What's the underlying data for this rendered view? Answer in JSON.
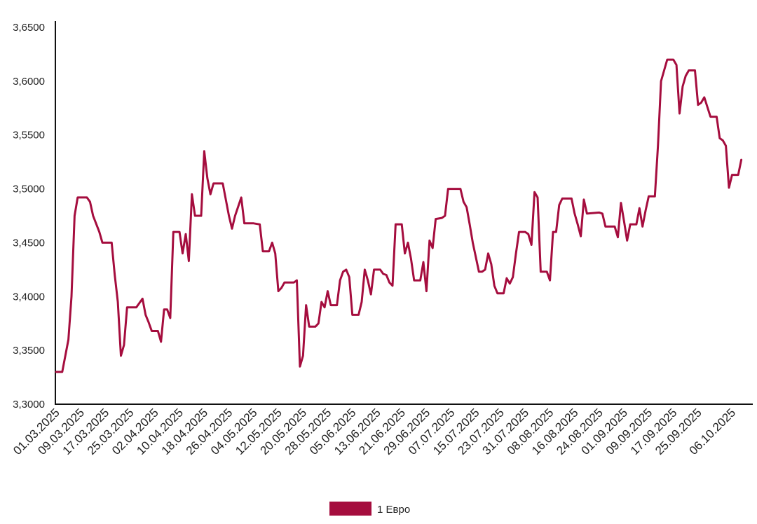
{
  "chart_data": {
    "type": "line",
    "title": "",
    "xlabel": "",
    "ylabel": "",
    "ylim": [
      3.3,
      3.65
    ],
    "y_ticks": [
      "3,3000",
      "3,3500",
      "3,4000",
      "3,4500",
      "3,5000",
      "3,5500",
      "3,6000",
      "3,6500"
    ],
    "y_tick_values": [
      3.3,
      3.35,
      3.4,
      3.45,
      3.5,
      3.55,
      3.6,
      3.65
    ],
    "x_tick_labels": [
      "01.03.2025",
      "09.03.2025",
      "17.03.2025",
      "25.03.2025",
      "02.04.2025",
      "10.04.2025",
      "18.04.2025",
      "26.04.2025",
      "04.05.2025",
      "12.05.2025",
      "20.05.2025",
      "28.05.2025",
      "05.06.2025",
      "13.06.2025",
      "21.06.2025",
      "29.06.2025",
      "07.07.2025",
      "15.07.2025",
      "23.07.2025",
      "31.07.2025",
      "08.08.2025",
      "16.08.2025",
      "24.08.2025",
      "01.09.2025",
      "09.09.2025",
      "17.09.2025",
      "25.09.2025",
      "06.10.2025"
    ],
    "x_range": [
      "01.03.2025",
      "10.10.2025"
    ],
    "grid": false,
    "legend_position": "bottom-center",
    "series": [
      {
        "name": "1 Евро",
        "color": "#A50D3E",
        "points": [
          [
            "01.03.2025",
            3.33
          ],
          [
            "03.03.2025",
            3.33
          ],
          [
            "05.03.2025",
            3.36
          ],
          [
            "06.03.2025",
            3.4
          ],
          [
            "07.03.2025",
            3.475
          ],
          [
            "08.03.2025",
            3.492
          ],
          [
            "11.03.2025",
            3.492
          ],
          [
            "12.03.2025",
            3.488
          ],
          [
            "13.03.2025",
            3.475
          ],
          [
            "15.03.2025",
            3.46
          ],
          [
            "16.03.2025",
            3.45
          ],
          [
            "19.03.2025",
            3.45
          ],
          [
            "20.03.2025",
            3.42
          ],
          [
            "21.03.2025",
            3.395
          ],
          [
            "22.03.2025",
            3.345
          ],
          [
            "23.03.2025",
            3.355
          ],
          [
            "24.03.2025",
            3.39
          ],
          [
            "27.03.2025",
            3.39
          ],
          [
            "29.03.2025",
            3.398
          ],
          [
            "30.03.2025",
            3.383
          ],
          [
            "31.03.2025",
            3.376
          ],
          [
            "01.04.2025",
            3.368
          ],
          [
            "03.04.2025",
            3.368
          ],
          [
            "04.04.2025",
            3.358
          ],
          [
            "05.04.2025",
            3.388
          ],
          [
            "06.04.2025",
            3.388
          ],
          [
            "07.04.2025",
            3.38
          ],
          [
            "08.04.2025",
            3.46
          ],
          [
            "10.04.2025",
            3.46
          ],
          [
            "11.04.2025",
            3.44
          ],
          [
            "12.04.2025",
            3.458
          ],
          [
            "13.04.2025",
            3.433
          ],
          [
            "14.04.2025",
            3.495
          ],
          [
            "15.04.2025",
            3.475
          ],
          [
            "17.04.2025",
            3.475
          ],
          [
            "18.04.2025",
            3.535
          ],
          [
            "19.04.2025",
            3.51
          ],
          [
            "20.04.2025",
            3.495
          ],
          [
            "21.04.2025",
            3.505
          ],
          [
            "24.04.2025",
            3.505
          ],
          [
            "26.04.2025",
            3.475
          ],
          [
            "27.04.2025",
            3.463
          ],
          [
            "28.04.2025",
            3.475
          ],
          [
            "30.04.2025",
            3.492
          ],
          [
            "01.05.2025",
            3.468
          ],
          [
            "04.05.2025",
            3.468
          ],
          [
            "06.05.2025",
            3.467
          ],
          [
            "07.05.2025",
            3.442
          ],
          [
            "09.05.2025",
            3.442
          ],
          [
            "10.05.2025",
            3.45
          ],
          [
            "11.05.2025",
            3.44
          ],
          [
            "12.05.2025",
            3.405
          ],
          [
            "13.05.2025",
            3.408
          ],
          [
            "14.05.2025",
            3.413
          ],
          [
            "17.05.2025",
            3.413
          ],
          [
            "18.05.2025",
            3.415
          ],
          [
            "19.05.2025",
            3.335
          ],
          [
            "20.05.2025",
            3.345
          ],
          [
            "21.05.2025",
            3.392
          ],
          [
            "22.05.2025",
            3.372
          ],
          [
            "24.05.2025",
            3.372
          ],
          [
            "25.05.2025",
            3.375
          ],
          [
            "26.05.2025",
            3.395
          ],
          [
            "27.05.2025",
            3.39
          ],
          [
            "28.05.2025",
            3.405
          ],
          [
            "29.05.2025",
            3.392
          ],
          [
            "31.05.2025",
            3.392
          ],
          [
            "01.06.2025",
            3.415
          ],
          [
            "02.06.2025",
            3.423
          ],
          [
            "03.06.2025",
            3.425
          ],
          [
            "04.06.2025",
            3.418
          ],
          [
            "05.06.2025",
            3.383
          ],
          [
            "07.06.2025",
            3.383
          ],
          [
            "08.06.2025",
            3.395
          ],
          [
            "09.06.2025",
            3.425
          ],
          [
            "10.06.2025",
            3.415
          ],
          [
            "11.06.2025",
            3.402
          ],
          [
            "12.06.2025",
            3.425
          ],
          [
            "14.06.2025",
            3.425
          ],
          [
            "15.06.2025",
            3.421
          ],
          [
            "16.06.2025",
            3.42
          ],
          [
            "17.06.2025",
            3.413
          ],
          [
            "18.06.2025",
            3.41
          ],
          [
            "19.06.2025",
            3.467
          ],
          [
            "21.06.2025",
            3.467
          ],
          [
            "22.06.2025",
            3.44
          ],
          [
            "23.06.2025",
            3.45
          ],
          [
            "24.06.2025",
            3.435
          ],
          [
            "25.06.2025",
            3.415
          ],
          [
            "27.06.2025",
            3.415
          ],
          [
            "28.06.2025",
            3.432
          ],
          [
            "29.06.2025",
            3.405
          ],
          [
            "30.06.2025",
            3.452
          ],
          [
            "01.07.2025",
            3.445
          ],
          [
            "02.07.2025",
            3.472
          ],
          [
            "04.07.2025",
            3.473
          ],
          [
            "05.07.2025",
            3.475
          ],
          [
            "06.07.2025",
            3.5
          ],
          [
            "10.07.2025",
            3.5
          ],
          [
            "11.07.2025",
            3.488
          ],
          [
            "12.07.2025",
            3.483
          ],
          [
            "13.07.2025",
            3.467
          ],
          [
            "14.07.2025",
            3.45
          ],
          [
            "16.07.2025",
            3.423
          ],
          [
            "17.07.2025",
            3.423
          ],
          [
            "18.07.2025",
            3.425
          ],
          [
            "19.07.2025",
            3.44
          ],
          [
            "20.07.2025",
            3.43
          ],
          [
            "21.07.2025",
            3.41
          ],
          [
            "22.07.2025",
            3.403
          ],
          [
            "24.07.2025",
            3.403
          ],
          [
            "25.07.2025",
            3.417
          ],
          [
            "26.07.2025",
            3.412
          ],
          [
            "27.07.2025",
            3.418
          ],
          [
            "28.07.2025",
            3.44
          ],
          [
            "29.07.2025",
            3.46
          ],
          [
            "31.07.2025",
            3.46
          ],
          [
            "01.08.2025",
            3.458
          ],
          [
            "02.08.2025",
            3.448
          ],
          [
            "03.08.2025",
            3.497
          ],
          [
            "04.08.2025",
            3.492
          ],
          [
            "05.08.2025",
            3.423
          ],
          [
            "07.08.2025",
            3.423
          ],
          [
            "08.08.2025",
            3.415
          ],
          [
            "09.08.2025",
            3.46
          ],
          [
            "10.08.2025",
            3.46
          ],
          [
            "11.08.2025",
            3.485
          ],
          [
            "12.08.2025",
            3.491
          ],
          [
            "15.08.2025",
            3.491
          ],
          [
            "16.08.2025",
            3.477
          ],
          [
            "17.08.2025",
            3.467
          ],
          [
            "18.08.2025",
            3.456
          ],
          [
            "19.08.2025",
            3.49
          ],
          [
            "20.08.2025",
            3.477
          ],
          [
            "24.08.2025",
            3.478
          ],
          [
            "25.08.2025",
            3.477
          ],
          [
            "26.08.2025",
            3.465
          ],
          [
            "29.08.2025",
            3.465
          ],
          [
            "30.08.2025",
            3.455
          ],
          [
            "31.08.2025",
            3.487
          ],
          [
            "01.09.2025",
            3.47
          ],
          [
            "02.09.2025",
            3.452
          ],
          [
            "03.09.2025",
            3.467
          ],
          [
            "05.09.2025",
            3.467
          ],
          [
            "06.09.2025",
            3.482
          ],
          [
            "07.09.2025",
            3.465
          ],
          [
            "08.09.2025",
            3.48
          ],
          [
            "09.09.2025",
            3.493
          ],
          [
            "11.09.2025",
            3.493
          ],
          [
            "12.09.2025",
            3.54
          ],
          [
            "13.09.2025",
            3.6
          ],
          [
            "14.09.2025",
            3.61
          ],
          [
            "15.09.2025",
            3.62
          ],
          [
            "17.09.2025",
            3.62
          ],
          [
            "18.09.2025",
            3.615
          ],
          [
            "19.09.2025",
            3.57
          ],
          [
            "20.09.2025",
            3.595
          ],
          [
            "21.09.2025",
            3.605
          ],
          [
            "22.09.2025",
            3.61
          ],
          [
            "24.09.2025",
            3.61
          ],
          [
            "25.09.2025",
            3.578
          ],
          [
            "26.09.2025",
            3.58
          ],
          [
            "27.09.2025",
            3.585
          ],
          [
            "29.09.2025",
            3.567
          ],
          [
            "01.10.2025",
            3.567
          ],
          [
            "02.10.2025",
            3.547
          ],
          [
            "03.10.2025",
            3.545
          ],
          [
            "04.10.2025",
            3.54
          ],
          [
            "05.10.2025",
            3.501
          ],
          [
            "06.10.2025",
            3.513
          ],
          [
            "08.10.2025",
            3.513
          ],
          [
            "09.10.2025",
            3.527
          ]
        ]
      }
    ]
  }
}
